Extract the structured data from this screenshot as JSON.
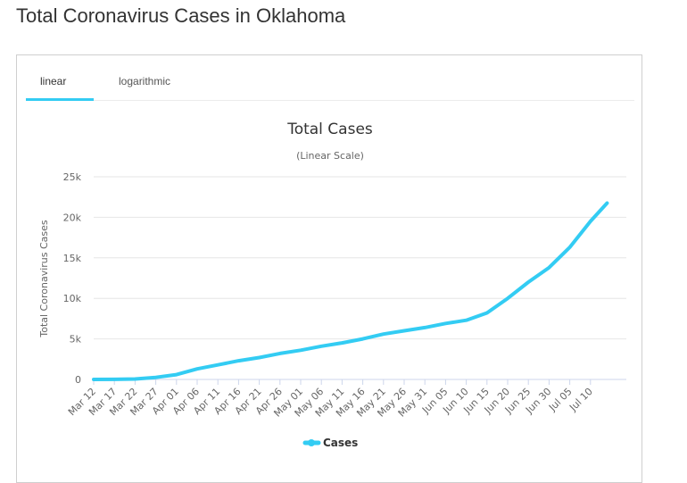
{
  "page": {
    "title": "Total Coronavirus Cases in Oklahoma"
  },
  "tabs": [
    {
      "label": "linear",
      "active": true
    },
    {
      "label": "logarithmic",
      "active": false
    }
  ],
  "colors": {
    "series": "#33ccf3",
    "tab_active": "#33ccf3",
    "grid": "#e6e6e6",
    "text": "#333333"
  },
  "chart_data": {
    "type": "line",
    "title": "Total Cases",
    "subtitle": "(Linear Scale)",
    "xlabel": "",
    "ylabel": "Total Coronavirus Cases",
    "ylim": [
      0,
      25000
    ],
    "yticks": [
      0,
      5000,
      10000,
      15000,
      20000,
      25000
    ],
    "ytick_labels": [
      "0",
      "5k",
      "10k",
      "15k",
      "20k",
      "25k"
    ],
    "xtick_labels": [
      "Mar 12",
      "Mar 17",
      "Mar 22",
      "Mar 27",
      "Apr 01",
      "Apr 06",
      "Apr 11",
      "Apr 16",
      "Apr 21",
      "Apr 26",
      "May 01",
      "May 06",
      "May 11",
      "May 16",
      "May 21",
      "May 26",
      "May 31",
      "Jun 05",
      "Jun 10",
      "Jun 15",
      "Jun 20",
      "Jun 25",
      "Jun 30",
      "Jul 05",
      "Jul 10"
    ],
    "grid": true,
    "legend": "bottom-center",
    "series": [
      {
        "name": "Cases",
        "x": [
          "Mar 12",
          "Mar 17",
          "Mar 22",
          "Mar 27",
          "Apr 01",
          "Apr 06",
          "Apr 11",
          "Apr 16",
          "Apr 21",
          "Apr 26",
          "May 01",
          "May 06",
          "May 11",
          "May 16",
          "May 21",
          "May 26",
          "May 31",
          "Jun 05",
          "Jun 10",
          "Jun 15",
          "Jun 20",
          "Jun 25",
          "Jun 30",
          "Jul 05",
          "Jul 10",
          "Jul 14"
        ],
        "values": [
          2,
          10,
          50,
          250,
          600,
          1300,
          1800,
          2300,
          2700,
          3200,
          3600,
          4100,
          4500,
          5000,
          5600,
          6000,
          6400,
          6900,
          7300,
          8200,
          10000,
          12000,
          13800,
          16300,
          19500,
          21750
        ]
      }
    ]
  }
}
